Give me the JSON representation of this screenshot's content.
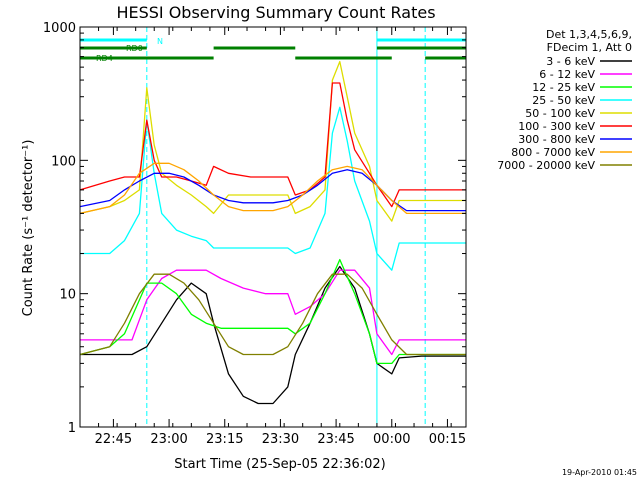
{
  "chart_data": {
    "type": "line",
    "title": "HESSI Observing Summary Count Rates",
    "xlabel": "Start Time (25-Sep-05 22:36:02)",
    "ylabel": "Count Rate (s⁻¹ detector⁻¹)",
    "yscale": "log",
    "ylim": [
      1,
      1000
    ],
    "xlim_min_since_start": [
      0,
      104
    ],
    "x_ticks": [
      "22:45",
      "23:00",
      "23:15",
      "23:30",
      "23:45",
      "00:00",
      "00:15"
    ],
    "x_tick_min": [
      9,
      24,
      39,
      54,
      69,
      84,
      99
    ],
    "y_ticks": [
      "1",
      "10",
      "100",
      "1000"
    ],
    "y_tick_vals": [
      1,
      10,
      100,
      1000
    ],
    "legend_header": [
      "Det 1,3,4,5,6,9,",
      "FDecim 1, Att 0"
    ],
    "legend_position": "right",
    "timestamp": "19-Apr-2010 01:45",
    "annotations": {
      "N": "N",
      "RD0": "RD0",
      "RD4": "RD4",
      "night_bars_min": [
        [
          0,
          18
        ],
        [
          80,
          104
        ]
      ],
      "rd0_bars_min": [
        [
          0,
          18
        ],
        [
          36,
          58
        ],
        [
          80,
          104
        ]
      ],
      "rd4_bars_min": [
        [
          0,
          36
        ],
        [
          58,
          84
        ],
        [
          93,
          104
        ]
      ],
      "dashed_lines_min": [
        18,
        93
      ],
      "solid_lines_min": [
        0,
        80
      ]
    },
    "series": [
      {
        "name": "3 - 6 keV",
        "color": "#000000",
        "x": [
          0,
          8,
          14,
          18,
          22,
          26,
          30,
          34,
          36,
          40,
          44,
          48,
          52,
          56,
          58,
          62,
          66,
          70,
          74,
          78,
          80,
          84,
          86,
          92,
          96,
          100,
          104
        ],
        "y": [
          3.5,
          3.5,
          3.5,
          4,
          6,
          9,
          12,
          10,
          6,
          2.5,
          1.7,
          1.5,
          1.5,
          2,
          3.5,
          6,
          11,
          16,
          11,
          5,
          3,
          2.5,
          3.3,
          3.4,
          3.4,
          3.4,
          3.4
        ]
      },
      {
        "name": "6 - 12 keV",
        "color": "#ff00ff",
        "x": [
          0,
          8,
          14,
          18,
          22,
          26,
          30,
          34,
          38,
          44,
          50,
          54,
          56,
          58,
          62,
          66,
          70,
          74,
          78,
          80,
          84,
          86,
          92,
          100,
          104
        ],
        "y": [
          4.5,
          4.5,
          4.5,
          9,
          13,
          15,
          15,
          15,
          13,
          11,
          10,
          10,
          10,
          7,
          8,
          10,
          15,
          15,
          11,
          5,
          3.5,
          4.5,
          4.5,
          4.5,
          4.5
        ]
      },
      {
        "name": "12 - 25 keV",
        "color": "#00ff00",
        "x": [
          0,
          8,
          12,
          18,
          22,
          26,
          30,
          34,
          38,
          42,
          46,
          50,
          54,
          56,
          58,
          62,
          66,
          70,
          74,
          78,
          80,
          84,
          86,
          92,
          100,
          104
        ],
        "y": [
          3.5,
          4,
          5,
          12,
          12,
          10,
          7,
          6,
          5.5,
          5.5,
          5.5,
          5.5,
          5.5,
          5.5,
          5,
          6,
          10,
          18,
          10,
          5,
          3,
          3,
          3.5,
          3.5,
          3.5,
          3.5
        ]
      },
      {
        "name": "25 - 50 keV",
        "color": "#00ffff",
        "x": [
          0,
          8,
          12,
          16,
          18,
          20,
          22,
          26,
          30,
          34,
          36,
          40,
          46,
          50,
          54,
          56,
          58,
          62,
          66,
          68,
          70,
          72,
          74,
          78,
          80,
          84,
          86,
          92,
          100,
          104
        ],
        "y": [
          20,
          20,
          25,
          40,
          200,
          80,
          40,
          30,
          27,
          25,
          22,
          22,
          22,
          22,
          22,
          22,
          20,
          22,
          40,
          160,
          250,
          140,
          70,
          35,
          20,
          15,
          24,
          24,
          24,
          24
        ]
      },
      {
        "name": "50 - 100 keV",
        "color": "#dddd00",
        "x": [
          0,
          8,
          12,
          16,
          18,
          20,
          22,
          26,
          30,
          34,
          36,
          40,
          46,
          50,
          54,
          56,
          58,
          62,
          66,
          68,
          70,
          72,
          74,
          78,
          80,
          84,
          86,
          92,
          100,
          104
        ],
        "y": [
          40,
          45,
          50,
          60,
          350,
          130,
          80,
          65,
          55,
          45,
          40,
          55,
          55,
          55,
          55,
          55,
          40,
          45,
          60,
          400,
          550,
          300,
          160,
          90,
          50,
          35,
          50,
          50,
          50,
          50
        ]
      },
      {
        "name": "100 - 300 keV",
        "color": "#ff0000",
        "x": [
          0,
          8,
          12,
          16,
          18,
          20,
          22,
          26,
          30,
          34,
          36,
          40,
          46,
          50,
          54,
          56,
          58,
          62,
          66,
          68,
          70,
          72,
          74,
          78,
          80,
          84,
          86,
          92,
          100,
          104
        ],
        "y": [
          60,
          70,
          75,
          75,
          200,
          100,
          75,
          75,
          70,
          65,
          90,
          80,
          75,
          75,
          75,
          75,
          55,
          60,
          75,
          380,
          380,
          200,
          120,
          80,
          65,
          45,
          60,
          60,
          60,
          60
        ]
      },
      {
        "name": "300 - 800 keV",
        "color": "#0000ff",
        "x": [
          0,
          8,
          12,
          16,
          20,
          24,
          28,
          32,
          36,
          40,
          44,
          48,
          52,
          56,
          60,
          64,
          68,
          72,
          76,
          80,
          84,
          88,
          92,
          96,
          100,
          104
        ],
        "y": [
          45,
          50,
          60,
          70,
          80,
          80,
          75,
          65,
          55,
          50,
          48,
          48,
          48,
          50,
          55,
          65,
          80,
          85,
          80,
          65,
          50,
          42,
          42,
          42,
          42,
          42
        ]
      },
      {
        "name": "800 - 7000 keV",
        "color": "#ffa500",
        "x": [
          0,
          8,
          12,
          16,
          20,
          24,
          28,
          32,
          36,
          40,
          44,
          48,
          52,
          56,
          60,
          64,
          68,
          72,
          76,
          80,
          84,
          88,
          92,
          96,
          100,
          104
        ],
        "y": [
          40,
          45,
          55,
          80,
          95,
          95,
          85,
          70,
          55,
          45,
          42,
          42,
          42,
          45,
          55,
          70,
          85,
          90,
          85,
          65,
          50,
          40,
          40,
          40,
          40,
          40
        ]
      },
      {
        "name": "7000 - 20000 keV",
        "color": "#808000",
        "x": [
          0,
          8,
          12,
          16,
          20,
          24,
          28,
          32,
          36,
          40,
          44,
          48,
          52,
          56,
          60,
          64,
          68,
          72,
          76,
          80,
          84,
          88,
          92,
          96,
          100,
          104
        ],
        "y": [
          3.5,
          4,
          6,
          10,
          14,
          14,
          12,
          9,
          6,
          4,
          3.5,
          3.5,
          3.5,
          4,
          6,
          10,
          14,
          14,
          11,
          7,
          4.5,
          3.5,
          3.5,
          3.5,
          3.5,
          3.5
        ]
      }
    ]
  }
}
